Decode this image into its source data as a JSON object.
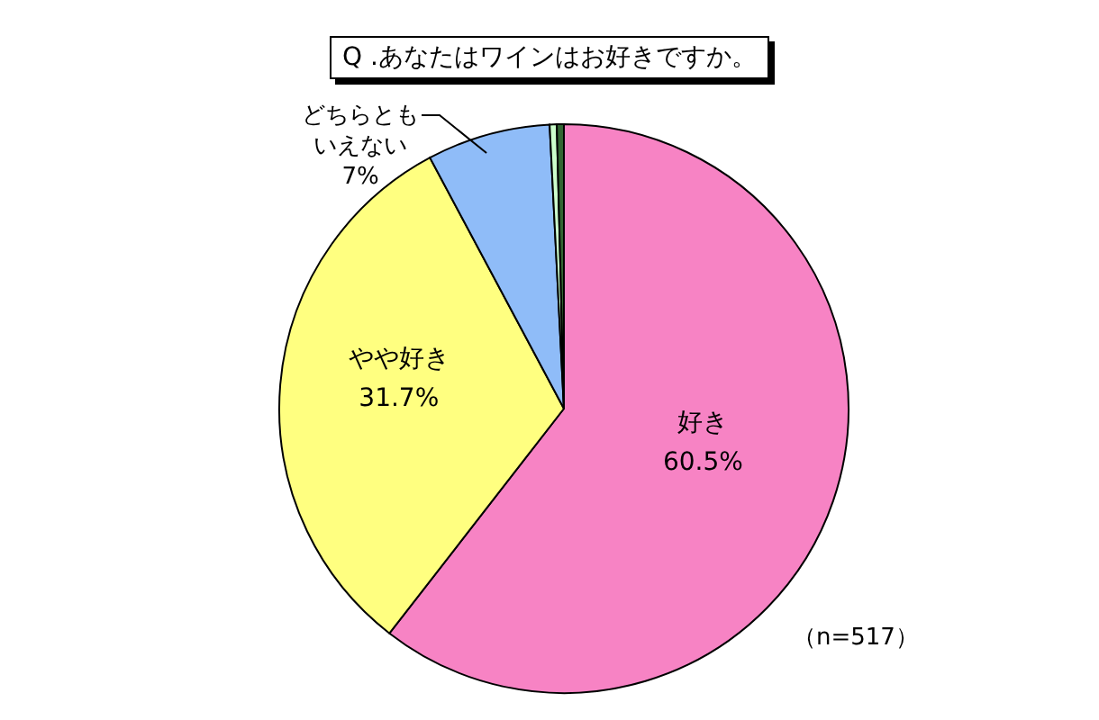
{
  "chart_data": {
    "type": "pie",
    "title": "Q .あなたはワインはお好きですか。",
    "categories": [
      "好き",
      "やや好き",
      "どちらともいえない",
      null,
      null
    ],
    "values": [
      60.5,
      31.7,
      7,
      0.4,
      0.4
    ],
    "colors": [
      "#f783c4",
      "#ffff80",
      "#8fbcf8",
      "#ccffcc",
      "#336633"
    ],
    "value_labels": [
      "60.5%",
      "31.7%",
      "7%",
      null,
      null
    ],
    "annotations": [
      "（n=517）"
    ]
  }
}
